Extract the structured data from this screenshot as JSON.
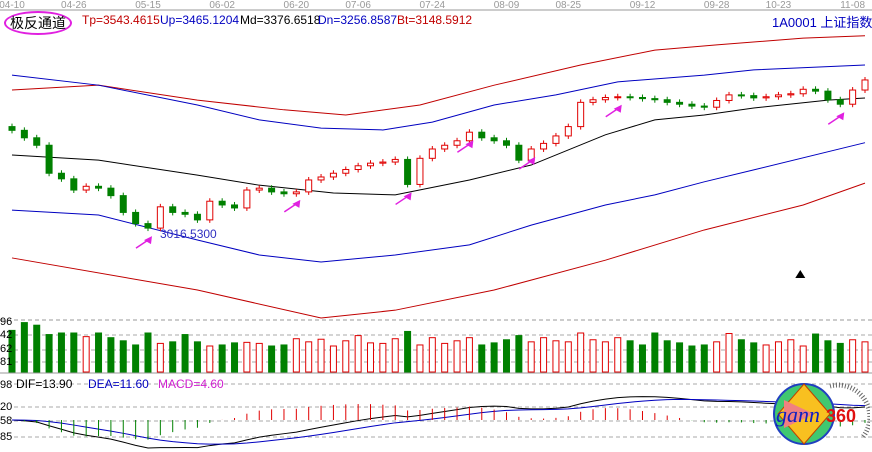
{
  "indicator_name": "极反通道",
  "symbol": "1A0001 上证指数",
  "legend": {
    "tp": "Tp=3543.4615",
    "up": "Up=3465.1204",
    "md": "Md=3376.6518",
    "dn": "Dn=3256.8587",
    "bt": "Bt=3148.5912"
  },
  "macd_legend": {
    "dif": "DIF=13.90",
    "dea": "DEA=11.60",
    "macd": "MACD=4.60"
  },
  "low_annotation": "3016.5300",
  "volume_axis": [
    "96",
    "42",
    "62",
    "81"
  ],
  "macd_axis": [
    "98",
    "20",
    "58",
    "85"
  ],
  "logo_text": "gann360",
  "colors": {
    "up": "#e00000",
    "down": "#008000",
    "md": "#000000",
    "band_inner": "#0000c0",
    "band_outer": "#c00000",
    "marker": "#e020e0"
  },
  "chart_data": {
    "type": "candlestick",
    "x_ticks": [
      {
        "i": 0,
        "label": "04-10"
      },
      {
        "i": 5,
        "label": "04-26"
      },
      {
        "i": 11,
        "label": "05-15"
      },
      {
        "i": 17,
        "label": "06-02"
      },
      {
        "i": 23,
        "label": "06-20"
      },
      {
        "i": 28,
        "label": "07-06"
      },
      {
        "i": 34,
        "label": "07-24"
      },
      {
        "i": 40,
        "label": "08-09"
      },
      {
        "i": 45,
        "label": "08-25"
      },
      {
        "i": 51,
        "label": "09-12"
      },
      {
        "i": 57,
        "label": "09-28"
      },
      {
        "i": 62,
        "label": "10-23"
      },
      {
        "i": 68,
        "label": "11-08"
      }
    ],
    "closes": [
      3290,
      3270,
      3250,
      3175,
      3160,
      3130,
      3140,
      3135,
      3115,
      3070,
      3040,
      3028,
      3085,
      3070,
      3065,
      3050,
      3100,
      3090,
      3082,
      3130,
      3135,
      3125,
      3120,
      3125,
      3157,
      3165,
      3175,
      3185,
      3195,
      3202,
      3205,
      3212,
      3145,
      3215,
      3240,
      3250,
      3262,
      3285,
      3270,
      3262,
      3250,
      3210,
      3240,
      3255,
      3275,
      3300,
      3365,
      3372,
      3378,
      3380,
      3378,
      3375,
      3372,
      3365,
      3360,
      3355,
      3352,
      3370,
      3385,
      3383,
      3377,
      3380,
      3385,
      3388,
      3400,
      3395,
      3372,
      3360,
      3398,
      3425
    ],
    "volumes": [
      80,
      95,
      90,
      72,
      75,
      75,
      68,
      75,
      66,
      60,
      52,
      75,
      55,
      58,
      72,
      58,
      50,
      52,
      56,
      57,
      55,
      50,
      52,
      64,
      58,
      63,
      50,
      60,
      70,
      56,
      55,
      64,
      78,
      52,
      66,
      55,
      60,
      66,
      52,
      56,
      62,
      70,
      58,
      66,
      60,
      58,
      75,
      62,
      58,
      66,
      60,
      52,
      75,
      60,
      56,
      50,
      52,
      58,
      74,
      62,
      56,
      52,
      58,
      62,
      50,
      73,
      60,
      55,
      62,
      58
    ],
    "lines": {
      "Tp": [
        [
          0,
          3398
        ],
        [
          7,
          3411
        ],
        [
          15,
          3371
        ],
        [
          22,
          3345
        ],
        [
          27,
          3331
        ],
        [
          33,
          3358
        ],
        [
          39,
          3411
        ],
        [
          46,
          3465
        ],
        [
          52,
          3505
        ],
        [
          57,
          3519
        ],
        [
          64,
          3537
        ],
        [
          69,
          3543.46
        ]
      ],
      "Up": [
        [
          0,
          3438
        ],
        [
          7,
          3411
        ],
        [
          15,
          3358
        ],
        [
          20,
          3318
        ],
        [
          25,
          3296
        ],
        [
          30,
          3291
        ],
        [
          34,
          3312
        ],
        [
          39,
          3358
        ],
        [
          44,
          3385
        ],
        [
          49,
          3420
        ],
        [
          56,
          3438
        ],
        [
          60,
          3452
        ],
        [
          69,
          3465.12
        ]
      ],
      "Md": [
        [
          0,
          3224
        ],
        [
          7,
          3210
        ],
        [
          15,
          3170
        ],
        [
          20,
          3143
        ],
        [
          26,
          3122
        ],
        [
          31,
          3117
        ],
        [
          37,
          3157
        ],
        [
          42,
          3197
        ],
        [
          48,
          3278
        ],
        [
          52,
          3318
        ],
        [
          56,
          3331
        ],
        [
          60,
          3350
        ],
        [
          66,
          3371
        ],
        [
          69,
          3376.65
        ]
      ],
      "Dn": [
        [
          0,
          3076
        ],
        [
          7,
          3063
        ],
        [
          15,
          2996
        ],
        [
          20,
          2956
        ],
        [
          25,
          2937
        ],
        [
          31,
          2956
        ],
        [
          37,
          2983
        ],
        [
          42,
          3036
        ],
        [
          48,
          3090
        ],
        [
          52,
          3117
        ],
        [
          56,
          3152
        ],
        [
          60,
          3184
        ],
        [
          69,
          3256.86
        ]
      ],
      "Bt": [
        [
          0,
          2948
        ],
        [
          15,
          2862
        ],
        [
          25,
          2787
        ],
        [
          31,
          2808
        ],
        [
          39,
          2862
        ],
        [
          48,
          2942
        ],
        [
          56,
          3023
        ],
        [
          64,
          3090
        ],
        [
          69,
          3148.59
        ]
      ]
    },
    "markers": [
      11,
      23,
      32,
      37,
      42,
      49,
      67
    ]
  }
}
